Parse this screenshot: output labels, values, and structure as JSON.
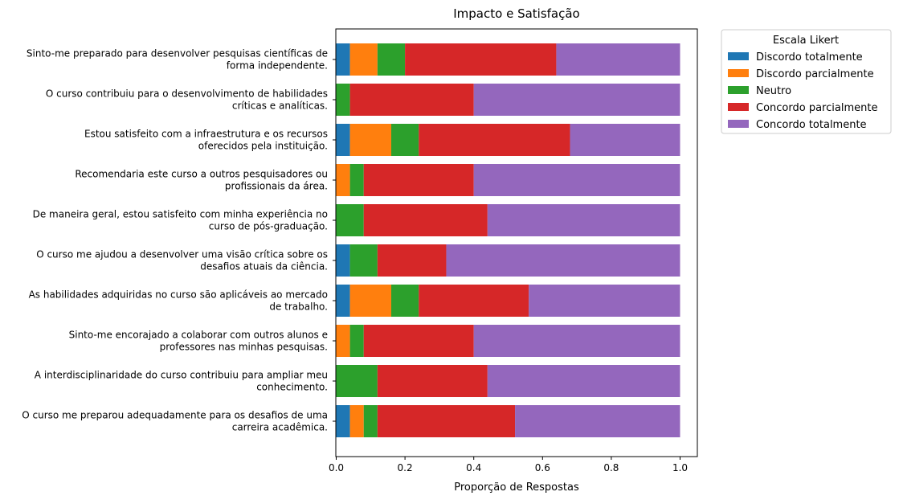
{
  "chart_data": {
    "type": "bar",
    "orientation": "horizontal",
    "stacked": true,
    "title": "Impacto e Satisfação",
    "xlabel": "Proporção de Respostas",
    "xlim": [
      0,
      1.0
    ],
    "xticks": [
      "0.0",
      "0.2",
      "0.4",
      "0.6",
      "0.8",
      "1.0"
    ],
    "xtick_values": [
      0,
      0.2,
      0.4,
      0.6,
      0.8,
      1.0
    ],
    "legend": {
      "title": "Escala Likert",
      "placement": "outside-top-right"
    },
    "grid": false,
    "categories": [
      "Sinto-me preparado para desenvolver pesquisas científicas de\nforma independente.",
      "O curso contribuiu para o desenvolvimento de habilidades\ncríticas e analíticas.",
      "Estou satisfeito com a infraestrutura e os recursos\noferecidos pela instituição.",
      "Recomendaria este curso a outros pesquisadores ou\nprofissionais da área.",
      "De maneira geral, estou satisfeito com minha experiência no\ncurso de pós-graduação.",
      "O curso me ajudou a desenvolver uma visão crítica sobre os\ndesafios atuais da ciência.",
      "As habilidades adquiridas no curso são aplicáveis ao mercado\nde trabalho.",
      "Sinto-me encorajado a colaborar com outros alunos e\nprofessores nas minhas pesquisas.",
      "A interdisciplinaridade do curso contribuiu para ampliar meu\nconhecimento.",
      "O curso me preparou adequadamente para os desafios de uma\ncarreira acadêmica."
    ],
    "series": [
      {
        "name": "Discordo totalmente",
        "color": "#1f77b4",
        "values": [
          0.04,
          0.0,
          0.04,
          0.0,
          0.0,
          0.04,
          0.04,
          0.0,
          0.0,
          0.04
        ]
      },
      {
        "name": "Discordo parcialmente",
        "color": "#ff7f0e",
        "values": [
          0.08,
          0.0,
          0.12,
          0.04,
          0.0,
          0.0,
          0.12,
          0.04,
          0.0,
          0.04
        ]
      },
      {
        "name": "Neutro",
        "color": "#2ca02c",
        "values": [
          0.08,
          0.04,
          0.08,
          0.04,
          0.08,
          0.08,
          0.08,
          0.04,
          0.12,
          0.04
        ]
      },
      {
        "name": "Concordo parcialmente",
        "color": "#d62728",
        "values": [
          0.44,
          0.36,
          0.44,
          0.32,
          0.36,
          0.2,
          0.32,
          0.32,
          0.32,
          0.4
        ]
      },
      {
        "name": "Concordo totalmente",
        "color": "#9467bd",
        "values": [
          0.36,
          0.6,
          0.32,
          0.6,
          0.56,
          0.68,
          0.44,
          0.6,
          0.56,
          0.48
        ]
      }
    ]
  }
}
